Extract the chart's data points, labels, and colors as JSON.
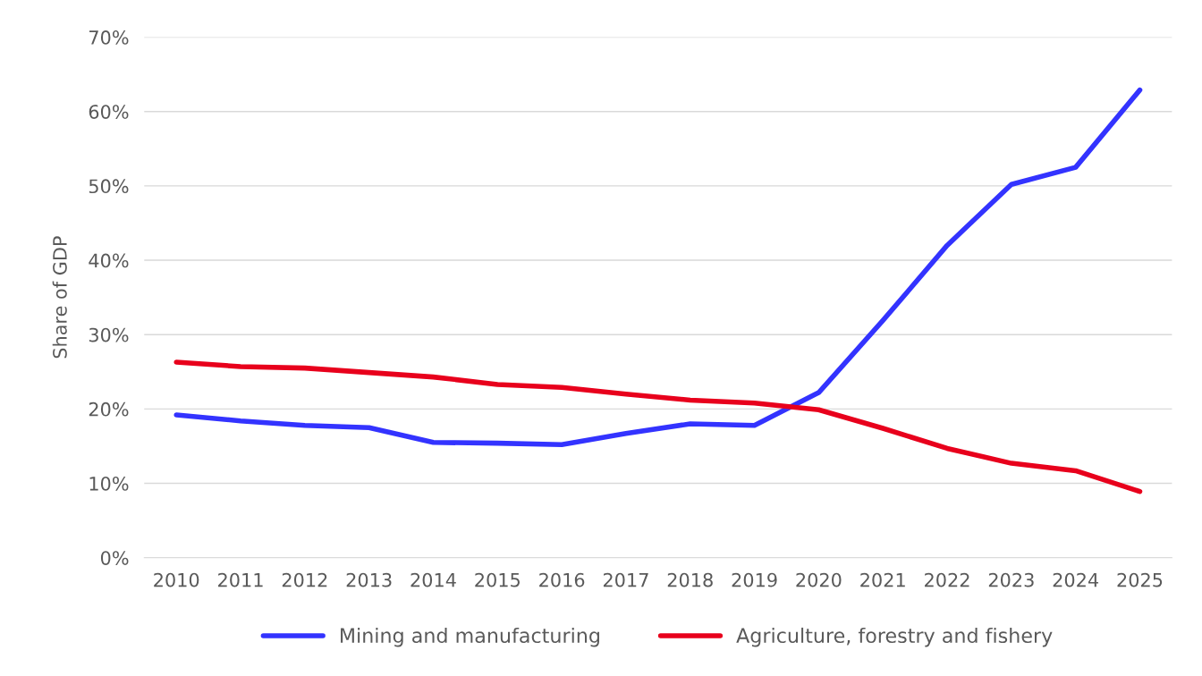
{
  "chart_data": {
    "type": "line",
    "ylabel": "Share of GDP",
    "categories": [
      "2010",
      "2011",
      "2012",
      "2013",
      "2014",
      "2015",
      "2016",
      "2017",
      "2018",
      "2019",
      "2020",
      "2021",
      "2022",
      "2023",
      "2024",
      "2025"
    ],
    "series": [
      {
        "name": "Mining and manufacturing",
        "color": "#3333ff",
        "values": [
          19.2,
          18.4,
          17.8,
          17.5,
          15.5,
          15.4,
          15.2,
          16.7,
          18.0,
          17.8,
          22.2,
          31.9,
          42.0,
          50.2,
          52.5,
          62.9
        ]
      },
      {
        "name": "Agriculture, forestry and fishery",
        "color": "#e8001c",
        "values": [
          26.3,
          25.7,
          25.5,
          24.9,
          24.3,
          23.3,
          22.9,
          22.0,
          21.2,
          20.8,
          19.9,
          17.4,
          14.7,
          12.7,
          11.7,
          8.9
        ]
      }
    ],
    "ylim": [
      0,
      70
    ],
    "yticks": [
      {
        "value": 0,
        "label": "0%"
      },
      {
        "value": 10,
        "label": "10%"
      },
      {
        "value": 20,
        "label": "20%"
      },
      {
        "value": 30,
        "label": "30%"
      },
      {
        "value": 40,
        "label": "40%"
      },
      {
        "value": 50,
        "label": "50%"
      },
      {
        "value": 60,
        "label": "60%"
      },
      {
        "value": 70,
        "label": "70%"
      }
    ],
    "grid": "y",
    "legend": "bottom",
    "marker": "none",
    "line_style": "solid"
  }
}
